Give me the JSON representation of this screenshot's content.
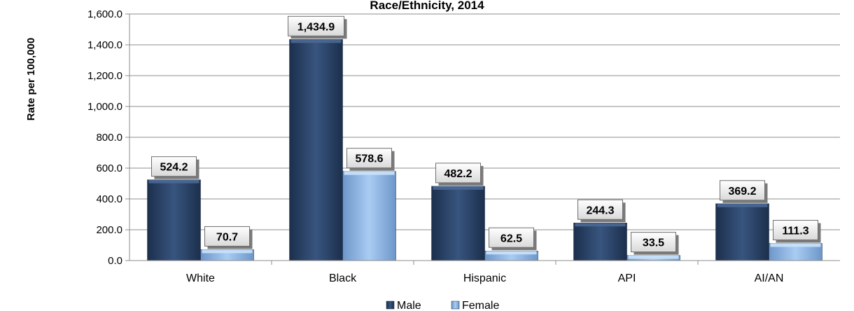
{
  "chart_data": {
    "type": "bar",
    "title": "Race/Ethnicity, 2014",
    "xlabel": "",
    "ylabel": "Rate per 100,000",
    "categories": [
      "White",
      "Black",
      "Hispanic",
      "API",
      "AI/AN"
    ],
    "series": [
      {
        "name": "Male",
        "values": [
          524.2,
          1434.9,
          482.2,
          244.3,
          369.2
        ],
        "color": "#2c4468"
      },
      {
        "name": "Female",
        "values": [
          70.7,
          578.6,
          62.5,
          33.5,
          111.3
        ],
        "color": "#8fb6e3"
      }
    ],
    "ylim": [
      0,
      1600
    ],
    "yticks": [
      "0.0",
      "200.0",
      "400.0",
      "600.0",
      "800.0",
      "1,000.0",
      "1,200.0",
      "1,400.0",
      "1,600.0"
    ],
    "data_labels": [
      [
        "524.2",
        "1,434.9",
        "482.2",
        "244.3",
        "369.2"
      ],
      [
        "70.7",
        "578.6",
        "62.5",
        "33.5",
        "111.3"
      ]
    ],
    "grid": true,
    "legend": "bottom"
  }
}
